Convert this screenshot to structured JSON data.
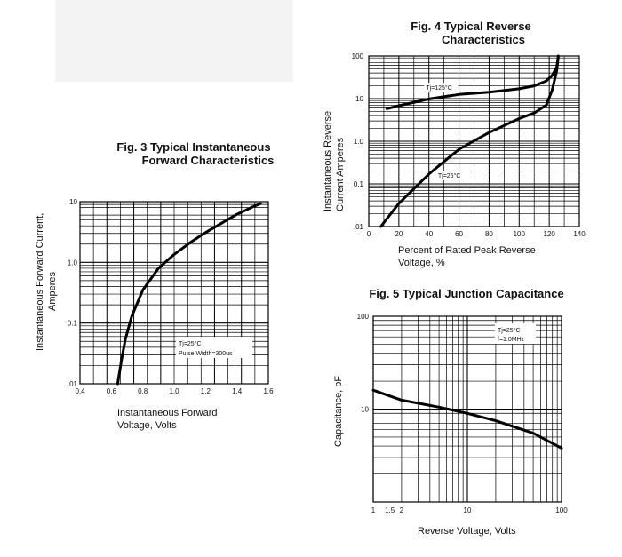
{
  "chart_data": [
    {
      "id": "fig3",
      "type": "line",
      "title_lines": [
        "Fig. 3  Typical Instantaneous",
        "Forward Characteristics"
      ],
      "xlabel_lines": [
        "Instantaneous Forward",
        "Voltage, Volts"
      ],
      "ylabel_lines": [
        "Instantaneous Forward Current,",
        "Amperes"
      ],
      "xscale": "linear",
      "yscale": "log",
      "xlim": [
        0.4,
        1.6
      ],
      "ylim": [
        0.01,
        10
      ],
      "x_ticks": [
        "0.4",
        "0.6",
        "0.8",
        "1.0",
        "1.2",
        "1.4",
        "1.6"
      ],
      "y_ticks": [
        "10",
        "1.0",
        "0.1",
        ".01"
      ],
      "annotations": [
        "Tj=25°C",
        "Pulse Width=300us"
      ],
      "series": [
        {
          "name": "Tj=25°C",
          "x": [
            0.64,
            0.665,
            0.69,
            0.73,
            0.8,
            0.9,
            1.0,
            1.1,
            1.2,
            1.3,
            1.4,
            1.5,
            1.55
          ],
          "y": [
            0.01,
            0.025,
            0.055,
            0.13,
            0.35,
            0.8,
            1.35,
            2.1,
            3.1,
            4.4,
            6.2,
            8.2,
            9.3
          ]
        }
      ]
    },
    {
      "id": "fig4",
      "type": "line",
      "title_lines": [
        "Fig. 4  Typical Reverse",
        "Characteristics"
      ],
      "xlabel_lines": [
        "Percent of Rated Peak Reverse",
        "Voltage, %"
      ],
      "ylabel_lines": [
        "Instantaneous Reverse",
        "Current Amperes"
      ],
      "xscale": "linear",
      "yscale": "log",
      "xlim": [
        0,
        140
      ],
      "ylim": [
        0.01,
        100
      ],
      "x_ticks": [
        "0",
        "20",
        "40",
        "60",
        "80",
        "100",
        "120",
        "140"
      ],
      "y_ticks": [
        "100",
        "10",
        "1.0",
        "0.1",
        ".01"
      ],
      "series": [
        {
          "name": "Tj=125°C",
          "label": "Tj=125°C",
          "label_at": [
            38,
            16
          ],
          "x": [
            12,
            20,
            40,
            60,
            80,
            100,
            110,
            118,
            122,
            125,
            126
          ],
          "y": [
            5.8,
            6.8,
            9.8,
            12.5,
            14.2,
            17,
            20,
            26,
            35,
            55,
            95
          ]
        },
        {
          "name": "Tj=25°C",
          "label": "Tj=25°C",
          "label_at": [
            46,
            0.14
          ],
          "x": [
            8,
            20,
            40,
            60,
            80,
            100,
            110,
            118,
            122,
            125,
            126
          ],
          "y": [
            0.01,
            0.035,
            0.17,
            0.65,
            1.6,
            3.4,
            4.6,
            7,
            16,
            45,
            100
          ]
        }
      ]
    },
    {
      "id": "fig5",
      "type": "line",
      "title_lines": [
        "Fig. 5  Typical Junction Capacitance"
      ],
      "xlabel_lines": [
        "Reverse Voltage, Volts"
      ],
      "ylabel_lines": [
        "Capacitance, pF"
      ],
      "xscale": "log",
      "yscale": "log",
      "xlim": [
        1,
        100
      ],
      "ylim": [
        1,
        100
      ],
      "x_ticks": [
        "1",
        "1.5",
        "2",
        "10",
        "100"
      ],
      "y_ticks": [
        "100",
        "10"
      ],
      "annotations": [
        "Tj=25°C",
        "f=1.0MHz"
      ],
      "series": [
        {
          "name": "Tj=25°C",
          "x": [
            1,
            2,
            5,
            10,
            20,
            50,
            100
          ],
          "y": [
            16,
            12.5,
            10.5,
            9,
            7.5,
            5.5,
            3.8
          ]
        }
      ]
    }
  ]
}
